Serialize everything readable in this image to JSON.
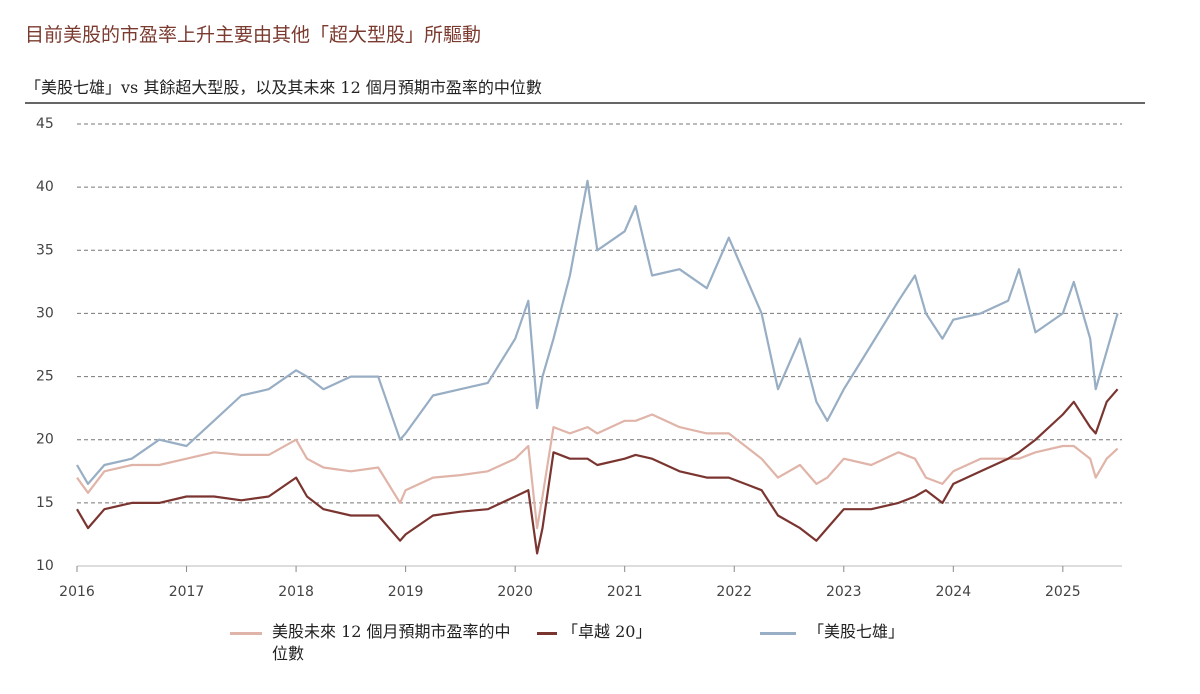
{
  "chart_data": {
    "type": "line",
    "title": "目前美股的市盈率上升主要由其他「超大型股」所驅動",
    "subtitle": "「美股七雄」vs 其餘超大型股，以及其未來 12 個月預期市盈率的中位數",
    "x": [
      2016,
      2016.1,
      2016.25,
      2016.5,
      2016.75,
      2017,
      2017.25,
      2017.5,
      2017.75,
      2018,
      2018.1,
      2018.25,
      2018.5,
      2018.75,
      2018.95,
      2019,
      2019.25,
      2019.5,
      2019.75,
      2020,
      2020.12,
      2020.2,
      2020.25,
      2020.35,
      2020.5,
      2020.66,
      2020.75,
      2021,
      2021.1,
      2021.25,
      2021.5,
      2021.75,
      2021.95,
      2022.1,
      2022.25,
      2022.4,
      2022.6,
      2022.75,
      2022.85,
      2023,
      2023.25,
      2023.5,
      2023.65,
      2023.75,
      2023.9,
      2024,
      2024.25,
      2024.5,
      2024.6,
      2024.75,
      2025,
      2025.1,
      2025.25,
      2025.3,
      2025.4,
      2025.5
    ],
    "series": [
      {
        "name": "美股未來 12 個月預期市盈率的中位數",
        "color": "#e0b4a8",
        "values": [
          17,
          15.8,
          17.5,
          18,
          18,
          18.5,
          19,
          18.8,
          18.8,
          20,
          18.5,
          17.8,
          17.5,
          17.8,
          15,
          16,
          17,
          17.2,
          17.5,
          18.5,
          19.5,
          13,
          15.5,
          21,
          20.5,
          21,
          20.5,
          21.5,
          21.5,
          22,
          21,
          20.5,
          20.5,
          19.5,
          18.5,
          17,
          18,
          16.5,
          17,
          18.5,
          18,
          19,
          18.5,
          17,
          16.5,
          17.5,
          18.5,
          18.5,
          18.5,
          19,
          19.5,
          19.5,
          18.5,
          17,
          18.5,
          19.3
        ]
      },
      {
        "name": "「卓越 20」",
        "color": "#7b3530",
        "values": [
          14.5,
          13,
          14.5,
          15,
          15,
          15.5,
          15.5,
          15.2,
          15.5,
          17,
          15.5,
          14.5,
          14,
          14,
          12,
          12.5,
          14,
          14.3,
          14.5,
          15.5,
          16,
          11,
          13,
          19,
          18.5,
          18.5,
          18,
          18.5,
          18.8,
          18.5,
          17.5,
          17,
          17,
          16.5,
          16,
          14,
          13,
          12,
          13,
          14.5,
          14.5,
          15,
          15.5,
          16,
          15,
          16.5,
          17.5,
          18.5,
          19,
          20,
          22,
          23,
          21,
          20.5,
          23,
          24
        ]
      },
      {
        "name": "「美股七雄」",
        "color": "#98aec4",
        "values": [
          18,
          16.5,
          18,
          18.5,
          20,
          19.5,
          21.5,
          23.5,
          24,
          25.5,
          25,
          24,
          25,
          25,
          20,
          20.5,
          23.5,
          24,
          24.5,
          28,
          31,
          22.5,
          25,
          28,
          33,
          40.5,
          35,
          36.5,
          38.5,
          33,
          33.5,
          32,
          36,
          33,
          30,
          24,
          28,
          23,
          21.5,
          24,
          27.5,
          31,
          33,
          30,
          28,
          29.5,
          30,
          31,
          33.5,
          28.5,
          30,
          32.5,
          28,
          24,
          27,
          30
        ]
      }
    ],
    "xlim": [
      2016,
      2025.54
    ],
    "xticks": [
      2016,
      2017,
      2018,
      2019,
      2020,
      2021,
      2022,
      2023,
      2024,
      2025
    ],
    "ylim": [
      10,
      45
    ],
    "yticks": [
      10,
      15,
      20,
      25,
      30,
      35,
      40,
      45
    ],
    "grid": true
  }
}
